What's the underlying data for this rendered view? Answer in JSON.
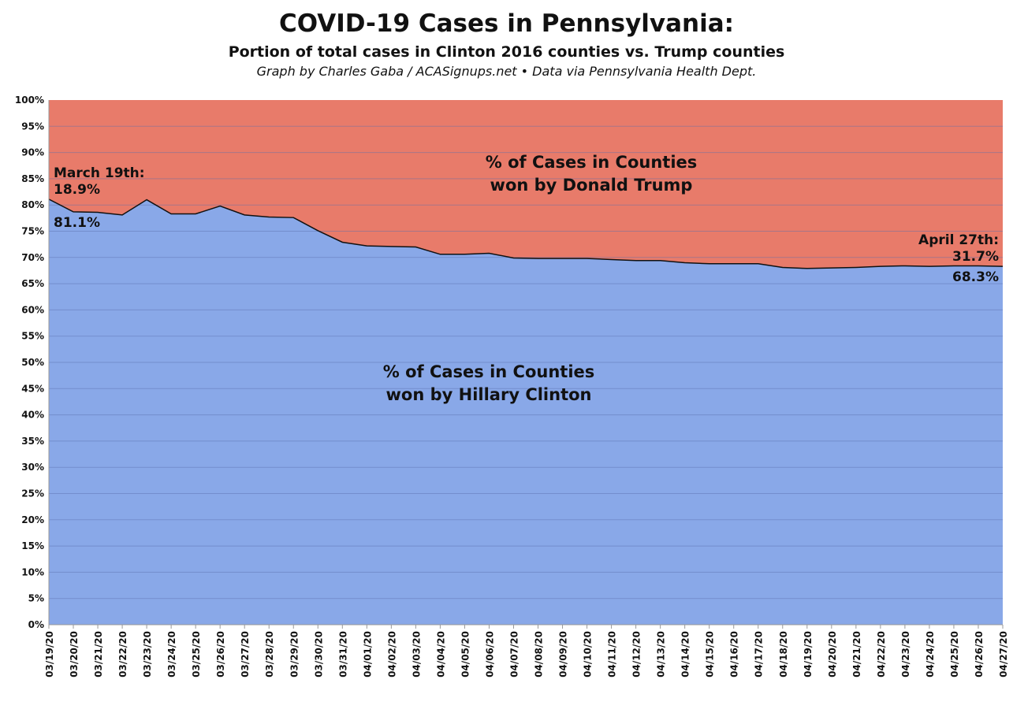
{
  "title": "COVID-19 Cases in Pennsylvania:",
  "subtitle": "Portion of total cases in Clinton 2016 counties vs. Trump counties",
  "credit": "Graph by Charles Gaba / ACASignups.net  •  Data via Pennsylvania Health Dept.",
  "chart_data": {
    "type": "area",
    "stacked": true,
    "percent": true,
    "ylim": [
      0,
      100
    ],
    "yticks": [
      "0%",
      "5%",
      "10%",
      "15%",
      "20%",
      "25%",
      "30%",
      "35%",
      "40%",
      "45%",
      "50%",
      "55%",
      "60%",
      "65%",
      "70%",
      "75%",
      "80%",
      "85%",
      "90%",
      "95%",
      "100%"
    ],
    "grid": true,
    "x": [
      "03/19/20",
      "03/20/20",
      "03/21/20",
      "03/22/20",
      "03/23/20",
      "03/24/20",
      "03/25/20",
      "03/26/20",
      "03/27/20",
      "03/28/20",
      "03/29/20",
      "03/30/20",
      "03/31/20",
      "04/01/20",
      "04/02/20",
      "04/03/20",
      "04/04/20",
      "04/05/20",
      "04/06/20",
      "04/07/20",
      "04/08/20",
      "04/09/20",
      "04/10/20",
      "04/11/20",
      "04/12/20",
      "04/13/20",
      "04/14/20",
      "04/15/20",
      "04/16/20",
      "04/17/20",
      "04/18/20",
      "04/19/20",
      "04/20/20",
      "04/21/20",
      "04/22/20",
      "04/23/20",
      "04/24/20",
      "04/25/20",
      "04/26/20",
      "04/27/20"
    ],
    "series": [
      {
        "name": "% of Cases in Counties won by Hillary Clinton",
        "color": "#89a8e8",
        "values": [
          81.1,
          78.7,
          78.6,
          78.1,
          81.0,
          78.3,
          78.3,
          79.8,
          78.1,
          77.7,
          77.6,
          75.1,
          72.9,
          72.2,
          72.1,
          72.0,
          70.6,
          70.6,
          70.8,
          69.9,
          69.8,
          69.8,
          69.8,
          69.6,
          69.4,
          69.4,
          69.0,
          68.8,
          68.8,
          68.8,
          68.1,
          67.9,
          68.0,
          68.1,
          68.3,
          68.4,
          68.3,
          68.4,
          68.4,
          68.3
        ]
      },
      {
        "name": "% of Cases in Counties won by Donald Trump",
        "color": "#e87b6a",
        "values": [
          18.9,
          21.3,
          21.4,
          21.9,
          19.0,
          21.7,
          21.7,
          20.2,
          21.9,
          22.3,
          22.4,
          24.9,
          27.1,
          27.8,
          27.9,
          28.0,
          29.4,
          29.4,
          29.2,
          30.1,
          30.2,
          30.2,
          30.2,
          30.4,
          30.6,
          30.6,
          31.0,
          31.2,
          31.2,
          31.2,
          31.9,
          32.1,
          32.0,
          31.9,
          31.7,
          31.6,
          31.7,
          31.6,
          31.6,
          31.7
        ]
      }
    ],
    "annotations": {
      "start_label": "March 19th:",
      "start_trump": "18.9%",
      "start_clinton": "81.1%",
      "end_label": "April 27th:",
      "end_trump": "31.7%",
      "end_clinton": "68.3%",
      "trump_area_line1": "% of Cases in Counties",
      "trump_area_line2": "won by Donald Trump",
      "clinton_area_line1": "% of Cases in Counties",
      "clinton_area_line2": "won by Hillary Clinton"
    }
  }
}
